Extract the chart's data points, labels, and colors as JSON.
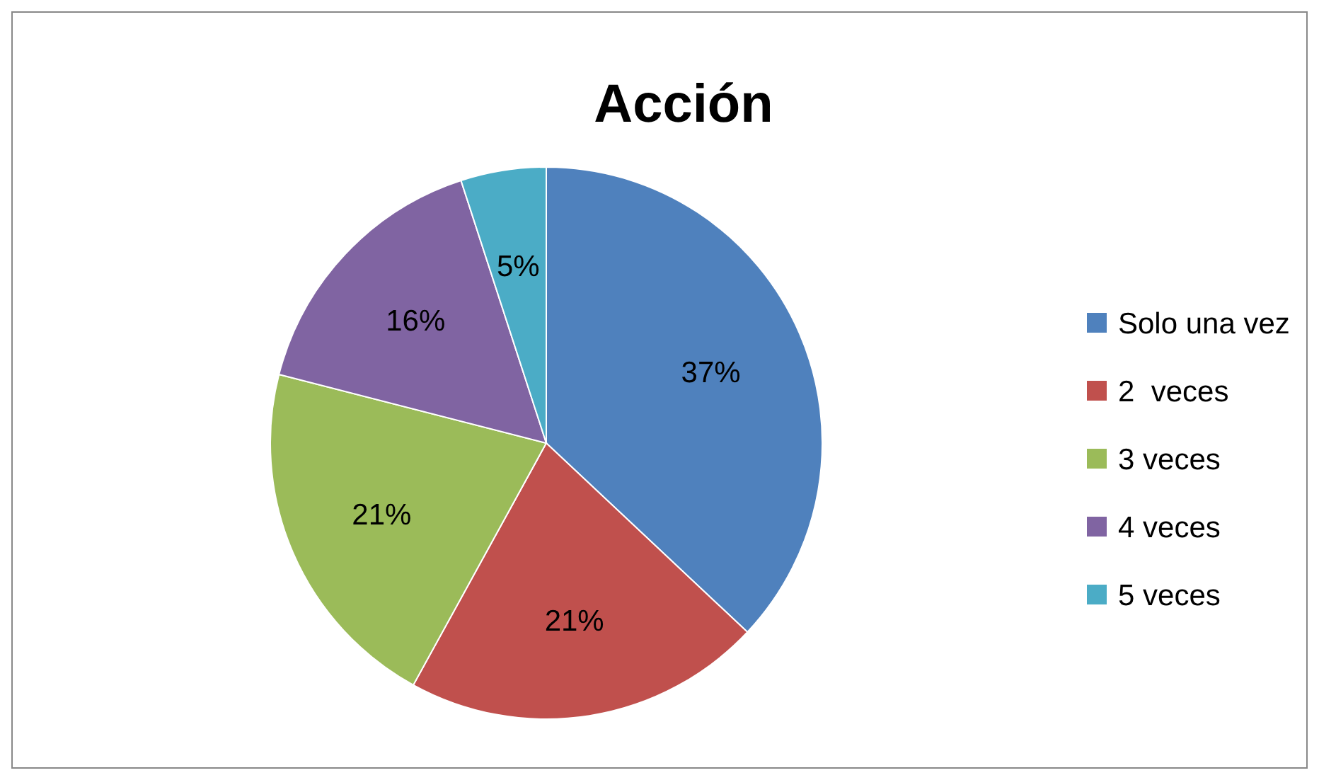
{
  "chart_data": {
    "type": "pie",
    "title": "Acción",
    "categories": [
      "Solo una vez",
      "2  veces",
      "3 veces",
      "4 veces",
      "5 veces"
    ],
    "values": [
      37,
      21,
      21,
      16,
      5
    ],
    "colors": [
      "#4f81bd",
      "#c0504d",
      "#9bbb59",
      "#8064a2",
      "#4bacc6"
    ],
    "value_labels": [
      "37%",
      "21%",
      "21%",
      "16%",
      "5%"
    ],
    "legend": "right"
  }
}
